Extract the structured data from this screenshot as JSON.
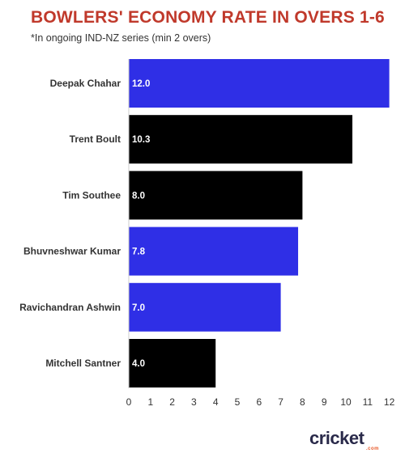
{
  "title": "BOWLERS' ECONOMY RATE IN OVERS 1-6",
  "subtitle": "*In ongoing IND-NZ series (min 2 overs)",
  "logo": {
    "word": "cricket",
    "sub": ".com"
  },
  "colors": {
    "india": "#2f2fe6",
    "new_zealand": "#000000",
    "title": "#c0392b"
  },
  "chart_data": {
    "type": "bar",
    "orientation": "horizontal",
    "categories": [
      "Deepak Chahar",
      "Trent Boult",
      "Tim Southee",
      "Bhuvneshwar Kumar",
      "Ravichandran Ashwin",
      "Mitchell Santner"
    ],
    "values": [
      12.0,
      10.3,
      8.0,
      7.8,
      7.0,
      4.0
    ],
    "value_labels": [
      "12.0",
      "10.3",
      "8.0",
      "7.8",
      "7.0",
      "4.0"
    ],
    "bar_colors": [
      "#2f2fe6",
      "#000000",
      "#000000",
      "#2f2fe6",
      "#2f2fe6",
      "#000000"
    ],
    "xlim": [
      0,
      12.5
    ],
    "xticks": [
      0,
      1,
      2,
      3,
      4,
      5,
      6,
      7,
      8,
      9,
      10,
      11,
      12
    ],
    "grid": false,
    "legend": "none"
  }
}
